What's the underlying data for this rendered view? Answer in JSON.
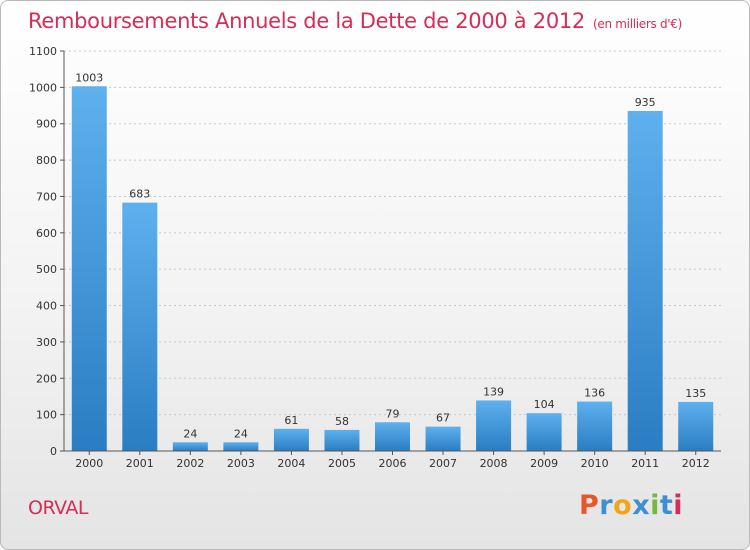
{
  "header": {
    "title": "Remboursements Annuels de la Dette de 2000 à 2012",
    "unit": "(en milliers d'€)"
  },
  "footer": {
    "town": "ORVAL",
    "logo": "Proxiti",
    "logo_colors": [
      "#e9562a",
      "#3d8fd1",
      "#f2a51c",
      "#3d8fd1",
      "#73b842",
      "#3d8fd1",
      "#d62c55"
    ]
  },
  "colors": {
    "title": "#d62c55",
    "bar_light": "#5eb0ee",
    "bar_dark": "#2a7dc2",
    "grid": "#c8c8c8",
    "axis": "#555555",
    "text": "#333333"
  },
  "chart_data": {
    "type": "bar",
    "categories": [
      "2000",
      "2001",
      "2002",
      "2003",
      "2004",
      "2005",
      "2006",
      "2007",
      "2008",
      "2009",
      "2010",
      "2011",
      "2012"
    ],
    "values": [
      1003,
      683,
      24,
      24,
      61,
      58,
      79,
      67,
      139,
      104,
      136,
      935,
      135
    ],
    "yticks": [
      0,
      100,
      200,
      300,
      400,
      500,
      600,
      700,
      800,
      900,
      1000,
      1100
    ],
    "ylim": [
      0,
      1100
    ],
    "grid": true,
    "legend": false
  }
}
